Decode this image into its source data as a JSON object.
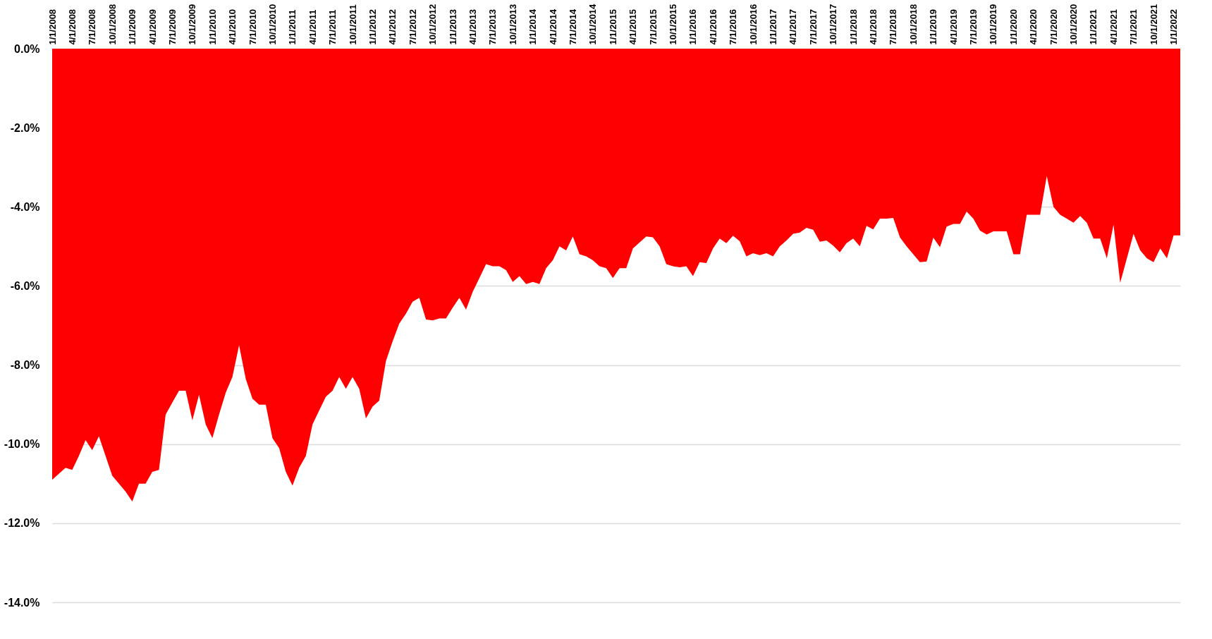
{
  "chart_data": {
    "type": "area",
    "categories": [
      "1/1/2008",
      null,
      null,
      "4/1/2008",
      null,
      null,
      "7/1/2008",
      null,
      null,
      "10/1/2008",
      null,
      null,
      "1/1/2009",
      null,
      null,
      "4/1/2009",
      null,
      null,
      "7/1/2009",
      null,
      null,
      "10/1/2009",
      null,
      null,
      "1/1/2010",
      null,
      null,
      "4/1/2010",
      null,
      null,
      "7/1/2010",
      null,
      null,
      "10/1/2010",
      null,
      null,
      "1/1/2011",
      null,
      null,
      "4/1/2011",
      null,
      null,
      "7/1/2011",
      null,
      null,
      "10/1/2011",
      null,
      null,
      "1/1/2012",
      null,
      null,
      "4/1/2012",
      null,
      null,
      "7/1/2012",
      null,
      null,
      "10/1/2012",
      null,
      null,
      "1/1/2013",
      null,
      null,
      "4/1/2013",
      null,
      null,
      "7/1/2013",
      null,
      null,
      "10/1/2013",
      null,
      null,
      "1/1/2014",
      null,
      null,
      "4/1/2014",
      null,
      null,
      "7/1/2014",
      null,
      null,
      "10/1/2014",
      null,
      null,
      "1/1/2015",
      null,
      null,
      "4/1/2015",
      null,
      null,
      "7/1/2015",
      null,
      null,
      "10/1/2015",
      null,
      null,
      "1/1/2016",
      null,
      null,
      "4/1/2016",
      null,
      null,
      "7/1/2016",
      null,
      null,
      "10/1/2016",
      null,
      null,
      "1/1/2017",
      null,
      null,
      "4/1/2017",
      null,
      null,
      "7/1/2017",
      null,
      null,
      "10/1/2017",
      null,
      null,
      "1/1/2018",
      null,
      null,
      "4/1/2018",
      null,
      null,
      "7/1/2018",
      null,
      null,
      "10/1/2018",
      null,
      null,
      "1/1/2019",
      null,
      null,
      "4/1/2019",
      null,
      null,
      "7/1/2019",
      null,
      null,
      "10/1/2019",
      null,
      null,
      "1/1/2020",
      null,
      null,
      "4/1/2020",
      null,
      null,
      "7/1/2020",
      null,
      null,
      "10/1/2020",
      null,
      null,
      "1/1/2021",
      null,
      null,
      "4/1/2021",
      null,
      null,
      "7/1/2021",
      null,
      null,
      "10/1/2021",
      null,
      null,
      "1/1/2022",
      null
    ],
    "series": [
      {
        "color": "#ff0000",
        "values": [
          -10.9,
          -10.75,
          -10.6,
          -10.65,
          -10.3,
          -9.9,
          -10.15,
          -9.8,
          -10.3,
          -10.8,
          -11.0,
          -11.2,
          -11.45,
          -11.0,
          -11.0,
          -10.7,
          -10.65,
          -9.25,
          -8.95,
          -8.65,
          -8.65,
          -9.4,
          -8.75,
          -9.5,
          -9.85,
          -9.25,
          -8.7,
          -8.3,
          -7.5,
          -8.35,
          -8.85,
          -9.0,
          -9.0,
          -9.85,
          -10.1,
          -10.7,
          -11.05,
          -10.6,
          -10.3,
          -9.5,
          -9.15,
          -8.8,
          -8.65,
          -8.3,
          -8.6,
          -8.3,
          -8.6,
          -9.35,
          -9.05,
          -8.9,
          -7.9,
          -7.4,
          -6.95,
          -6.7,
          -6.4,
          -6.3,
          -6.85,
          -6.87,
          -6.82,
          -6.82,
          -6.55,
          -6.3,
          -6.6,
          -6.15,
          -5.8,
          -5.45,
          -5.5,
          -5.5,
          -5.6,
          -5.9,
          -5.75,
          -5.95,
          -5.9,
          -5.95,
          -5.55,
          -5.35,
          -5.0,
          -5.1,
          -4.75,
          -5.2,
          -5.25,
          -5.35,
          -5.5,
          -5.55,
          -5.8,
          -5.55,
          -5.55,
          -5.05,
          -4.9,
          -4.75,
          -4.77,
          -5.0,
          -5.45,
          -5.5,
          -5.53,
          -5.5,
          -5.75,
          -5.4,
          -5.42,
          -5.05,
          -4.8,
          -4.92,
          -4.73,
          -4.87,
          -5.25,
          -5.17,
          -5.22,
          -5.17,
          -5.25,
          -5.0,
          -4.85,
          -4.68,
          -4.65,
          -4.53,
          -4.58,
          -4.88,
          -4.85,
          -4.98,
          -5.15,
          -4.92,
          -4.8,
          -5.0,
          -4.48,
          -4.57,
          -4.3,
          -4.3,
          -4.28,
          -4.77,
          -5.0,
          -5.2,
          -5.4,
          -5.38,
          -4.78,
          -5.02,
          -4.5,
          -4.43,
          -4.43,
          -4.12,
          -4.3,
          -4.6,
          -4.7,
          -4.62,
          -4.62,
          -4.62,
          -5.2,
          -5.2,
          -4.2,
          -4.2,
          -4.2,
          -3.22,
          -4.0,
          -4.2,
          -4.3,
          -4.4,
          -4.23,
          -4.4,
          -4.8,
          -4.8,
          -5.3,
          -4.45,
          -5.92,
          -5.3,
          -4.68,
          -5.1,
          -5.3,
          -5.4,
          -5.05,
          -5.3,
          -4.72,
          -4.72
        ]
      }
    ],
    "ylim": [
      -14,
      0
    ],
    "yticks": [
      {
        "value": -14,
        "label": "-14.0%"
      },
      {
        "value": -12,
        "label": "-12.0%"
      },
      {
        "value": -10,
        "label": "-10.0%"
      },
      {
        "value": -8,
        "label": "-8.0%"
      },
      {
        "value": -6,
        "label": "-6.0%"
      },
      {
        "value": -4,
        "label": "-4.0%"
      },
      {
        "value": -2,
        "label": "-2.0%"
      },
      {
        "value": 0,
        "label": "0.0%"
      }
    ],
    "grid": "y"
  }
}
